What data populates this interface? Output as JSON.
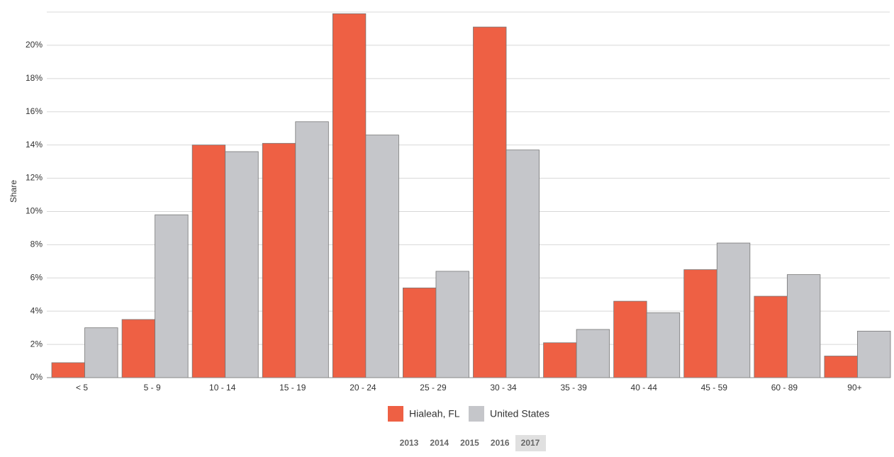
{
  "chart_data": {
    "type": "bar",
    "y_label": "Share",
    "categories": [
      "< 5",
      "5 - 9",
      "10 - 14",
      "15 - 19",
      "20 - 24",
      "25 - 29",
      "30 - 34",
      "35 - 39",
      "40 - 44",
      "45 - 59",
      "60 - 89",
      "90+"
    ],
    "series": [
      {
        "name": "Hialeah, FL",
        "color": "#ee6044",
        "values": [
          0.9,
          3.5,
          14.0,
          14.1,
          21.9,
          5.4,
          21.1,
          2.1,
          4.6,
          6.5,
          4.9,
          1.3
        ]
      },
      {
        "name": "United States",
        "color": "#c5c6ca",
        "values": [
          3.0,
          9.8,
          13.6,
          15.4,
          14.6,
          6.4,
          13.7,
          2.9,
          3.9,
          8.1,
          6.2,
          2.8
        ]
      }
    ],
    "ylim": [
      0,
      22
    ],
    "yticks": [
      {
        "value": 0,
        "label": "0%"
      },
      {
        "value": 2,
        "label": "2%"
      },
      {
        "value": 4,
        "label": "4%"
      },
      {
        "value": 6,
        "label": "6%"
      },
      {
        "value": 8,
        "label": "8%"
      },
      {
        "value": 10,
        "label": "10%"
      },
      {
        "value": 12,
        "label": "12%"
      },
      {
        "value": 14,
        "label": "14%"
      },
      {
        "value": 16,
        "label": "16%"
      },
      {
        "value": 18,
        "label": "18%"
      },
      {
        "value": 20,
        "label": "20%"
      }
    ],
    "grid": true,
    "years": [
      "2013",
      "2014",
      "2015",
      "2016",
      "2017"
    ],
    "selected_year": "2017"
  }
}
